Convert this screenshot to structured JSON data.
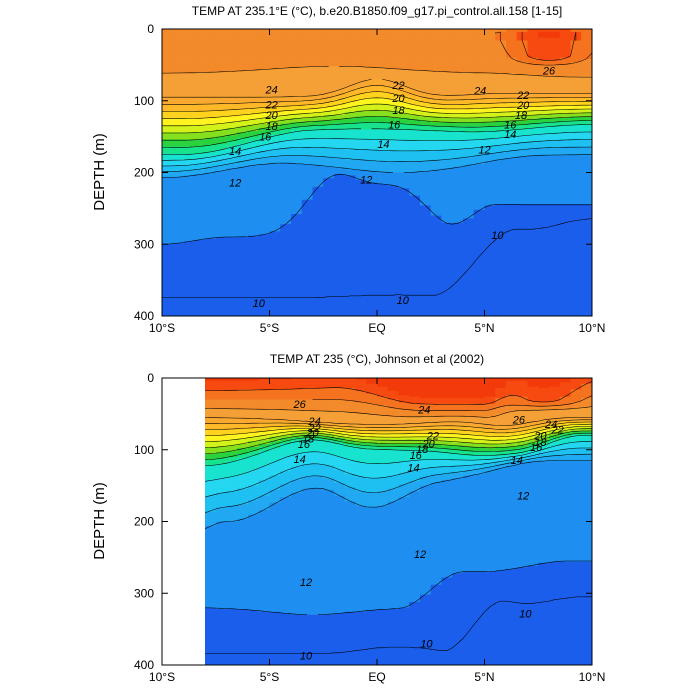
{
  "chart_data": [
    {
      "type": "contour",
      "title": "TEMP AT 235.1°E (°C), b.e20.B1850.f09_g17.pi_control.all.158 [1-15]",
      "xlabel": "",
      "ylabel": "DEPTH (m)",
      "xlim": [
        -10,
        10
      ],
      "ylim": [
        0,
        400
      ],
      "y_inverted": true,
      "data_xlim": [
        -10,
        10
      ],
      "x_ticks": [
        -10,
        -5,
        0,
        5,
        10
      ],
      "x_tick_labels": [
        "10°S",
        "5°S",
        "EQ",
        "5°N",
        "10°N"
      ],
      "y_ticks": [
        0,
        100,
        200,
        300,
        400
      ],
      "y_tick_labels": [
        "0",
        "100",
        "200",
        "300",
        "400"
      ],
      "contour_interval": 1,
      "contour_labels": [
        {
          "text": "24",
          "x": -4.9,
          "y": 84
        },
        {
          "text": "22",
          "x": -4.9,
          "y": 105
        },
        {
          "text": "20",
          "x": -4.9,
          "y": 120
        },
        {
          "text": "18",
          "x": -4.9,
          "y": 135
        },
        {
          "text": "16",
          "x": -5.2,
          "y": 150
        },
        {
          "text": "14",
          "x": -6.6,
          "y": 170
        },
        {
          "text": "12",
          "x": -6.6,
          "y": 214
        },
        {
          "text": "22",
          "x": 1.0,
          "y": 78
        },
        {
          "text": "20",
          "x": 1.0,
          "y": 96
        },
        {
          "text": "18",
          "x": 1.0,
          "y": 113
        },
        {
          "text": "16",
          "x": 0.8,
          "y": 133
        },
        {
          "text": "14",
          "x": 0.3,
          "y": 160
        },
        {
          "text": "12",
          "x": -0.5,
          "y": 210
        },
        {
          "text": "24",
          "x": 4.8,
          "y": 86
        },
        {
          "text": "22",
          "x": 6.8,
          "y": 92
        },
        {
          "text": "20",
          "x": 6.8,
          "y": 106
        },
        {
          "text": "18",
          "x": 6.7,
          "y": 120
        },
        {
          "text": "16",
          "x": 6.2,
          "y": 133
        },
        {
          "text": "14",
          "x": 6.2,
          "y": 146
        },
        {
          "text": "12",
          "x": 5.0,
          "y": 168
        },
        {
          "text": "26",
          "x": 8.0,
          "y": 58
        },
        {
          "text": "10",
          "x": 5.6,
          "y": 287
        },
        {
          "text": "10",
          "x": -5.5,
          "y": 382
        },
        {
          "text": "10",
          "x": 1.2,
          "y": 378
        }
      ]
    },
    {
      "type": "contour",
      "title": "TEMP AT 235 (°C), Johnson et al (2002)",
      "xlabel": "",
      "ylabel": "DEPTH (m)",
      "xlim": [
        -10,
        10
      ],
      "ylim": [
        0,
        400
      ],
      "y_inverted": true,
      "data_xlim": [
        -8,
        10
      ],
      "x_ticks": [
        -10,
        -5,
        0,
        5,
        10
      ],
      "x_tick_labels": [
        "10°S",
        "5°S",
        "EQ",
        "5°N",
        "10°N"
      ],
      "y_ticks": [
        0,
        100,
        200,
        300,
        400
      ],
      "y_tick_labels": [
        "0",
        "100",
        "200",
        "300",
        "400"
      ],
      "contour_interval": 1,
      "contour_labels": [
        {
          "text": "26",
          "x": -3.6,
          "y": 36
        },
        {
          "text": "24",
          "x": -2.9,
          "y": 60
        },
        {
          "text": "22",
          "x": -2.9,
          "y": 70
        },
        {
          "text": "20",
          "x": -3.0,
          "y": 76
        },
        {
          "text": "18",
          "x": -3.2,
          "y": 84
        },
        {
          "text": "16",
          "x": -3.4,
          "y": 92
        },
        {
          "text": "14",
          "x": -3.6,
          "y": 113
        },
        {
          "text": "24",
          "x": 2.2,
          "y": 44
        },
        {
          "text": "22",
          "x": 2.6,
          "y": 80
        },
        {
          "text": "20",
          "x": 2.4,
          "y": 91
        },
        {
          "text": "18",
          "x": 2.1,
          "y": 99
        },
        {
          "text": "16",
          "x": 1.8,
          "y": 107
        },
        {
          "text": "14",
          "x": 1.7,
          "y": 125
        },
        {
          "text": "26",
          "x": 6.6,
          "y": 58
        },
        {
          "text": "24",
          "x": 8.1,
          "y": 64
        },
        {
          "text": "22",
          "x": 8.4,
          "y": 72
        },
        {
          "text": "20",
          "x": 7.6,
          "y": 80
        },
        {
          "text": "18",
          "x": 7.6,
          "y": 89
        },
        {
          "text": "16",
          "x": 7.4,
          "y": 96
        },
        {
          "text": "14",
          "x": 6.5,
          "y": 114
        },
        {
          "text": "12",
          "x": 6.8,
          "y": 164
        },
        {
          "text": "12",
          "x": 2.0,
          "y": 245
        },
        {
          "text": "12",
          "x": -3.3,
          "y": 284
        },
        {
          "text": "10",
          "x": 6.9,
          "y": 328
        },
        {
          "text": "10",
          "x": 2.3,
          "y": 370
        },
        {
          "text": "10",
          "x": -3.3,
          "y": 387
        }
      ]
    }
  ],
  "colorscale": [
    {
      "t": 10,
      "color": "#1A5EEB"
    },
    {
      "t": 11,
      "color": "#1E8FF0"
    },
    {
      "t": 12,
      "color": "#21A9F2"
    },
    {
      "t": 13,
      "color": "#1FC0F2"
    },
    {
      "t": 14,
      "color": "#25D7F0"
    },
    {
      "t": 15,
      "color": "#18E3CE"
    },
    {
      "t": 16,
      "color": "#19E28C"
    },
    {
      "t": 17,
      "color": "#2BD23F"
    },
    {
      "t": 18,
      "color": "#86E01E"
    },
    {
      "t": 19,
      "color": "#D3F21A"
    },
    {
      "t": 20,
      "color": "#FFF41F"
    },
    {
      "t": 21,
      "color": "#FFD21E"
    },
    {
      "t": 22,
      "color": "#FFB828"
    },
    {
      "t": 23,
      "color": "#FBA831"
    },
    {
      "t": 24,
      "color": "#F4A037"
    },
    {
      "t": 25,
      "color": "#F38A2B"
    },
    {
      "t": 26,
      "color": "#F5731E"
    },
    {
      "t": 27,
      "color": "#F64A10"
    },
    {
      "t": 28,
      "color": "#F33A0A"
    }
  ]
}
